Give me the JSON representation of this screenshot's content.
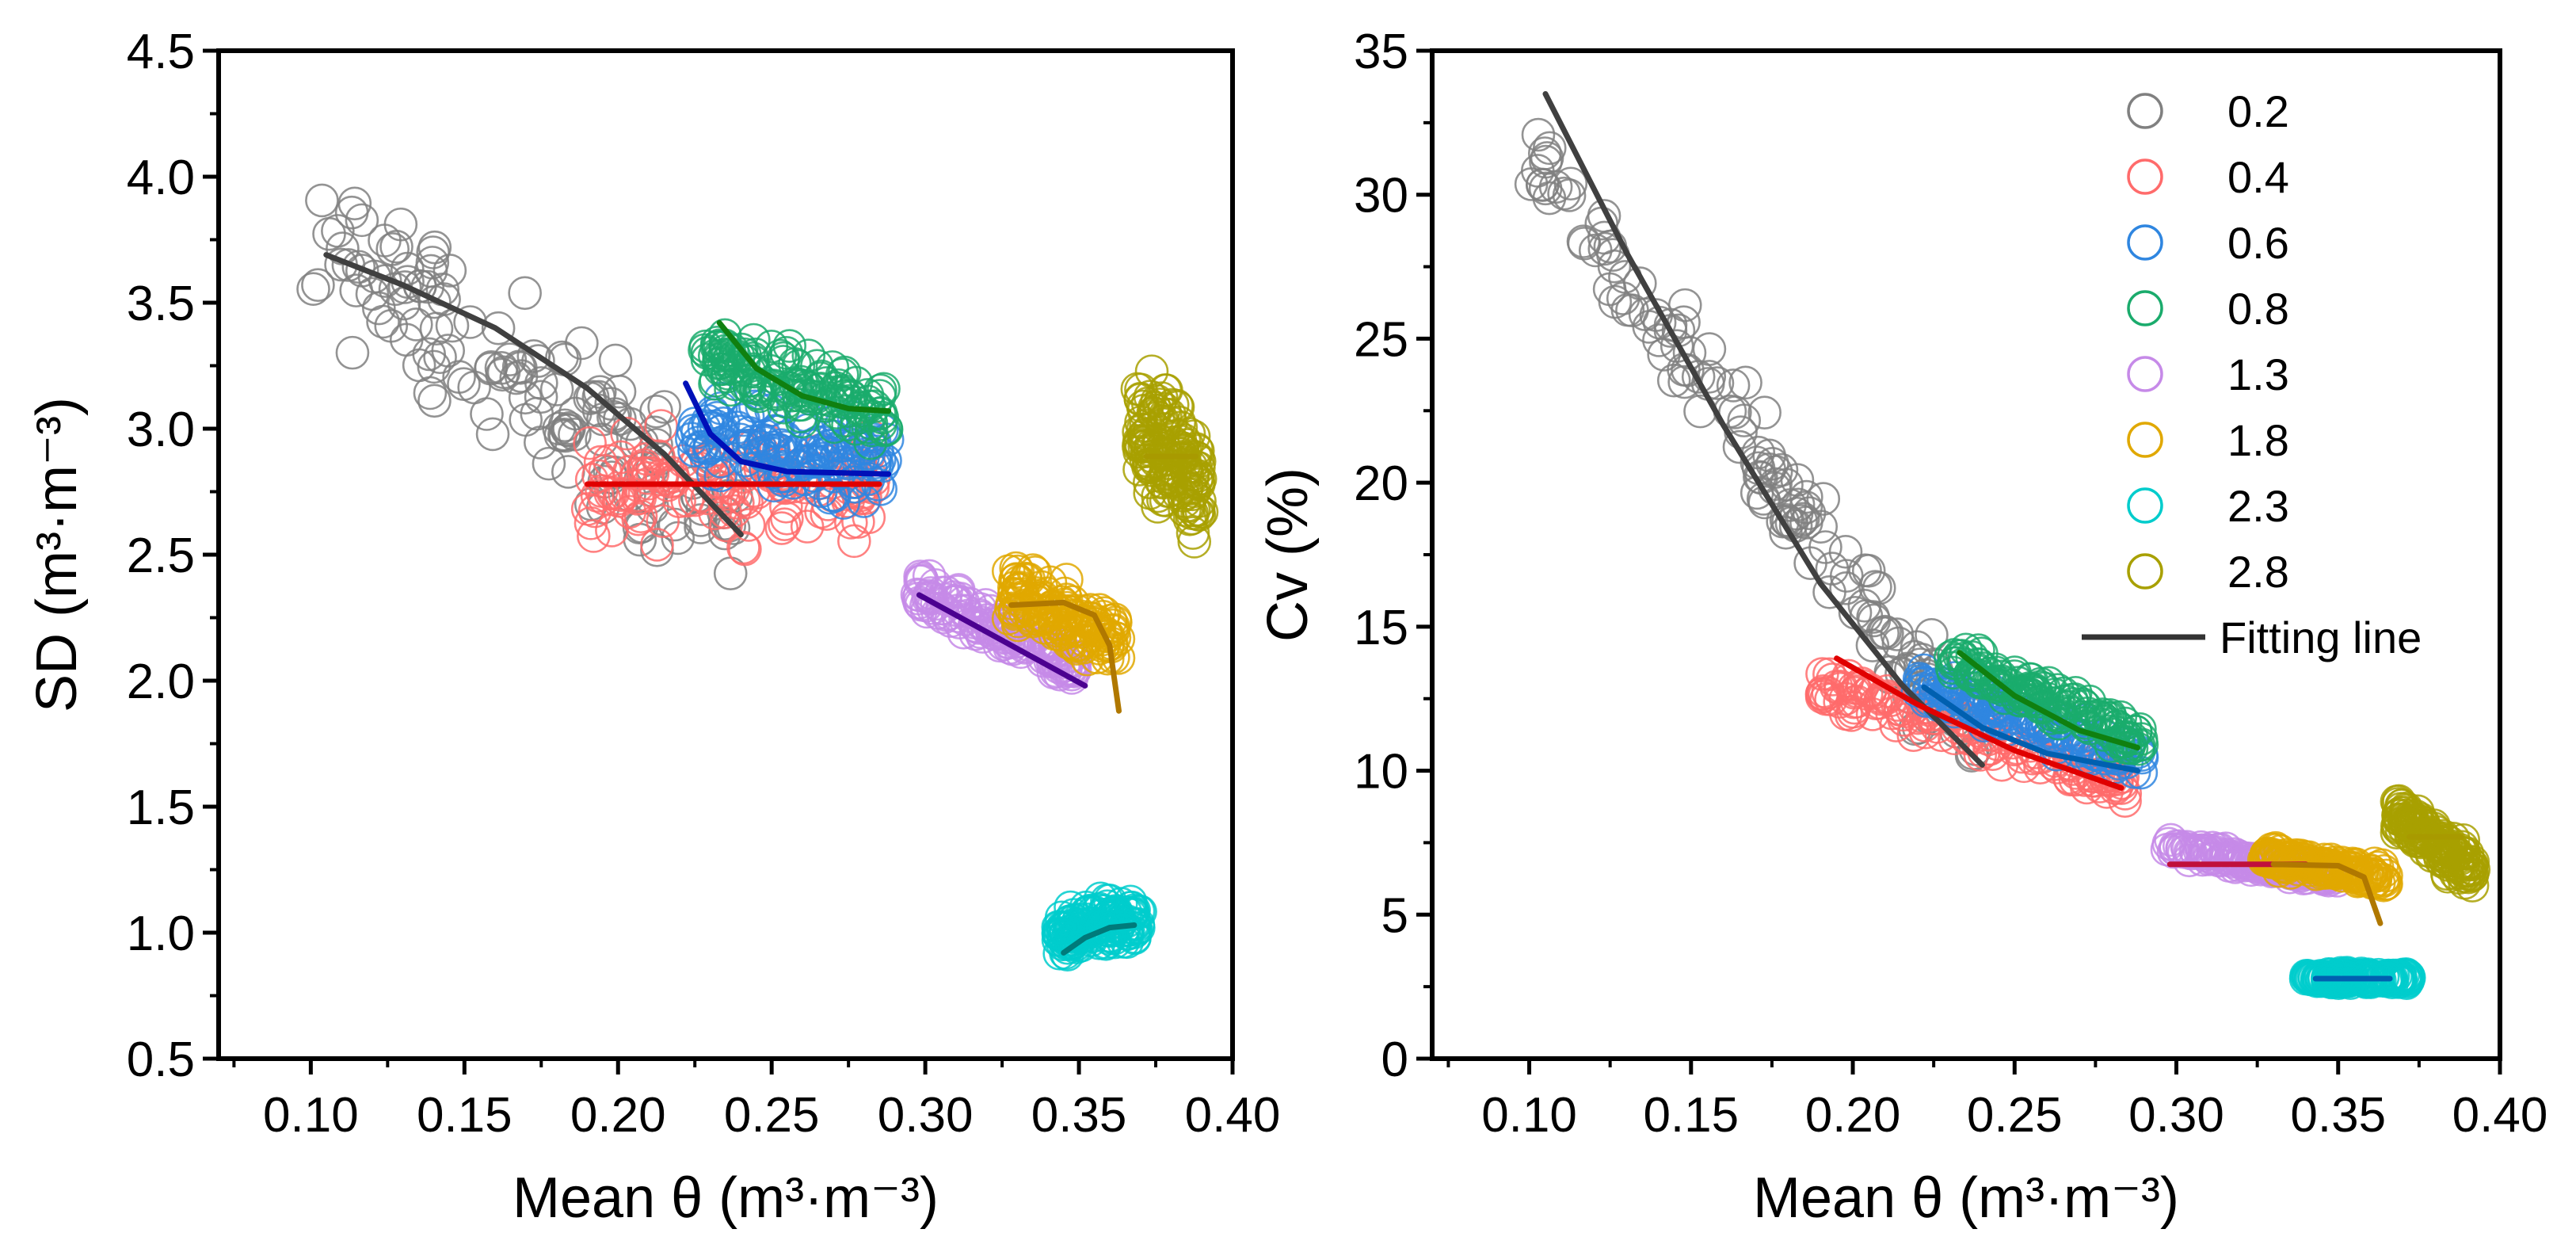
{
  "chart_data": [
    {
      "type": "scatter",
      "xlabel": "Mean θ (m³·m⁻³)",
      "ylabel": "SD (m³·m⁻³)",
      "xlim": [
        0.07,
        0.4
      ],
      "ylim": [
        0.5,
        4.5
      ],
      "x_ticks": [
        "0.10",
        "0.15",
        "0.20",
        "0.25",
        "0.30",
        "0.35",
        "0.40"
      ],
      "y_ticks": [
        "0.5",
        "1.0",
        "1.5",
        "2.0",
        "2.5",
        "3.0",
        "3.5",
        "4.0",
        "4.5"
      ],
      "grid": false,
      "series": [
        {
          "name": "0.2",
          "color": "#808080",
          "line_color": "#404040",
          "x_range": [
            0.1,
            0.24
          ],
          "y_center": [
            3.75,
            2.6
          ],
          "y_spread": 0.45,
          "fit": [
            [
              0.105,
              3.69
            ],
            [
              0.13,
              3.57
            ],
            [
              0.16,
              3.4
            ],
            [
              0.19,
              3.16
            ],
            [
              0.215,
              2.9
            ],
            [
              0.24,
              2.58
            ]
          ]
        },
        {
          "name": "0.4",
          "color": "#ff6b6b",
          "line_color": "#e00000",
          "x_range": [
            0.19,
            0.285
          ],
          "y_center": [
            2.78,
            2.78
          ],
          "y_spread": 0.3,
          "fit": [
            [
              0.19,
              2.78
            ],
            [
              0.285,
              2.78
            ]
          ]
        },
        {
          "name": "0.6",
          "color": "#2f86e0",
          "line_color": "#0010b8",
          "x_range": [
            0.222,
            0.288
          ],
          "y_center": [
            3.0,
            2.85
          ],
          "y_spread": 0.22,
          "fit": [
            [
              0.222,
              3.18
            ],
            [
              0.23,
              2.98
            ],
            [
              0.24,
              2.87
            ],
            [
              0.255,
              2.83
            ],
            [
              0.288,
              2.82
            ]
          ]
        },
        {
          "name": "0.8",
          "color": "#1aab6c",
          "line_color": "#108010",
          "x_range": [
            0.228,
            0.288
          ],
          "y_center": [
            3.28,
            3.05
          ],
          "y_spread": 0.18,
          "fit": [
            [
              0.233,
              3.42
            ],
            [
              0.245,
              3.24
            ],
            [
              0.26,
              3.13
            ],
            [
              0.275,
              3.08
            ],
            [
              0.288,
              3.07
            ]
          ]
        },
        {
          "name": "1.3",
          "color": "#c68ae8",
          "line_color": "#4b0090",
          "x_range": [
            0.297,
            0.35
          ],
          "y_center": [
            2.35,
            2.05
          ],
          "y_spread": 0.12,
          "fit": [
            [
              0.298,
              2.34
            ],
            [
              0.352,
              1.98
            ]
          ]
        },
        {
          "name": "1.8",
          "color": "#e0a800",
          "line_color": "#b07800",
          "x_range": [
            0.327,
            0.363
          ],
          "y_center": [
            2.35,
            2.15
          ],
          "y_spread": 0.18,
          "fit": [
            [
              0.328,
              2.3
            ],
            [
              0.345,
              2.31
            ],
            [
              0.355,
              2.26
            ],
            [
              0.36,
              2.14
            ],
            [
              0.363,
              1.88
            ]
          ]
        },
        {
          "name": "2.3",
          "color": "#00cccc",
          "line_color": "#007a7a",
          "x_range": [
            0.343,
            0.37
          ],
          "y_center": [
            1.0,
            1.05
          ],
          "y_spread": 0.13,
          "fit": [
            [
              0.345,
              0.92
            ],
            [
              0.352,
              0.98
            ],
            [
              0.36,
              1.02
            ],
            [
              0.368,
              1.03
            ]
          ]
        },
        {
          "name": "2.8",
          "color": "#a8a000",
          "line_color": "#a89a00",
          "x_range": [
            0.369,
            0.39
          ],
          "y_center": [
            3.0,
            2.8
          ],
          "y_spread": 0.38,
          "fit": [
            [
              0.372,
              2.89
            ],
            [
              0.388,
              2.89
            ]
          ]
        }
      ]
    },
    {
      "type": "scatter",
      "xlabel": "Mean θ (m³·m⁻³)",
      "ylabel": "Cv (%)",
      "xlim": [
        0.07,
        0.4
      ],
      "ylim": [
        0,
        35
      ],
      "x_ticks": [
        "0.10",
        "0.15",
        "0.20",
        "0.25",
        "0.30",
        "0.35",
        "0.40"
      ],
      "y_ticks": [
        "0",
        "5",
        "10",
        "15",
        "20",
        "25",
        "30",
        "35"
      ],
      "grid": false,
      "legend_position": "top-right",
      "legend_fit_label": "Fitting line",
      "series": [
        {
          "name": "0.2",
          "color": "#808080",
          "line_color": "#404040",
          "x_range": [
            0.1,
            0.24
          ],
          "y_center": [
            31.5,
            10.5
          ],
          "y_spread": 2.5,
          "fit": [
            [
              0.105,
              33.5
            ],
            [
              0.13,
              28.0
            ],
            [
              0.16,
              22.0
            ],
            [
              0.19,
              16.5
            ],
            [
              0.215,
              13.0
            ],
            [
              0.24,
              10.2
            ]
          ]
        },
        {
          "name": "0.4",
          "color": "#ff6b6b",
          "line_color": "#e00000",
          "x_range": [
            0.19,
            0.285
          ],
          "y_center": [
            13.0,
            9.5
          ],
          "y_spread": 1.0,
          "fit": [
            [
              0.195,
              13.9
            ],
            [
              0.22,
              12.3
            ],
            [
              0.25,
              10.7
            ],
            [
              0.283,
              9.4
            ]
          ]
        },
        {
          "name": "0.6",
          "color": "#2f86e0",
          "line_color": "#0060b0",
          "x_range": [
            0.22,
            0.29
          ],
          "y_center": [
            13.0,
            10.3
          ],
          "y_spread": 0.9,
          "fit": [
            [
              0.222,
              12.9
            ],
            [
              0.24,
              11.5
            ],
            [
              0.26,
              10.6
            ],
            [
              0.288,
              10.0
            ]
          ]
        },
        {
          "name": "0.8",
          "color": "#1aab6c",
          "line_color": "#108010",
          "x_range": [
            0.23,
            0.29
          ],
          "y_center": [
            14.0,
            11.0
          ],
          "y_spread": 0.9,
          "fit": [
            [
              0.233,
              14.1
            ],
            [
              0.25,
              12.6
            ],
            [
              0.27,
              11.4
            ],
            [
              0.288,
              10.8
            ]
          ]
        },
        {
          "name": "1.3",
          "color": "#c68ae8",
          "line_color": "#c0103c",
          "x_range": [
            0.297,
            0.35
          ],
          "y_center": [
            7.3,
            6.3
          ],
          "y_spread": 0.4,
          "fit": [
            [
              0.298,
              6.75
            ],
            [
              0.34,
              6.75
            ]
          ]
        },
        {
          "name": "1.8",
          "color": "#e0a800",
          "line_color": "#b07800",
          "x_range": [
            0.327,
            0.365
          ],
          "y_center": [
            7.0,
            6.3
          ],
          "y_spread": 0.5,
          "fit": [
            [
              0.33,
              6.75
            ],
            [
              0.35,
              6.7
            ],
            [
              0.358,
              6.3
            ],
            [
              0.363,
              4.7
            ]
          ]
        },
        {
          "name": "2.3",
          "color": "#00cccc",
          "line_color": "#0060b0",
          "x_range": [
            0.34,
            0.372
          ],
          "y_center": [
            2.8,
            2.8
          ],
          "y_spread": 0.25,
          "fit": [
            [
              0.343,
              2.78
            ],
            [
              0.366,
              2.78
            ]
          ]
        },
        {
          "name": "2.8",
          "color": "#a8a000",
          "line_color": "#a89a00",
          "x_range": [
            0.368,
            0.392
          ],
          "y_center": [
            8.5,
            6.5
          ],
          "y_spread": 1.0,
          "fit": [
            [
              0.372,
              7.7
            ],
            [
              0.388,
              7.7
            ]
          ]
        }
      ]
    }
  ]
}
